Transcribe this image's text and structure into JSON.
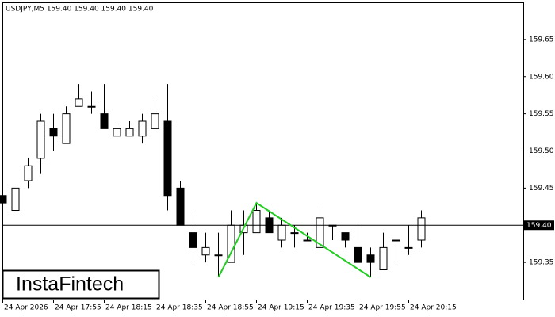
{
  "chart_data": {
    "type": "candlestick",
    "title": "USDJPY,M5  159.40 159.40 159.40 159.40",
    "brand": "InstaFintech",
    "categories": [
      "24 Apr 2026",
      null,
      null,
      null,
      "24 Apr 17:55",
      null,
      null,
      null,
      "24 Apr 18:15",
      null,
      null,
      null,
      "24 Apr 18:35",
      null,
      null,
      null,
      "24 Apr 18:55",
      null,
      null,
      null,
      "24 Apr 19:15",
      null,
      null,
      null,
      "24 Apr 19:35",
      null,
      null,
      null,
      "24 Apr 19:55",
      null,
      null,
      null,
      "24 Apr 20:15",
      null
    ],
    "open": [
      159.44,
      159.42,
      159.46,
      159.49,
      159.53,
      159.51,
      159.56,
      159.56,
      159.55,
      159.52,
      159.52,
      159.52,
      159.53,
      159.54,
      159.45,
      159.39,
      159.36,
      159.36,
      159.35,
      159.39,
      159.39,
      159.41,
      159.38,
      159.39,
      159.38,
      159.37,
      159.4,
      159.39,
      159.37,
      159.36,
      159.34,
      159.38,
      159.37,
      159.38
    ],
    "high": [
      159.45,
      159.45,
      159.49,
      159.55,
      159.55,
      159.56,
      159.59,
      159.58,
      159.59,
      159.54,
      159.54,
      159.55,
      159.57,
      159.59,
      159.46,
      159.42,
      159.39,
      159.39,
      159.42,
      159.42,
      159.43,
      159.42,
      159.41,
      159.4,
      159.39,
      159.43,
      159.4,
      159.39,
      159.4,
      159.37,
      159.39,
      159.38,
      159.4,
      159.42
    ],
    "low": [
      159.42,
      159.42,
      159.45,
      159.47,
      159.5,
      159.51,
      159.56,
      159.55,
      159.53,
      159.52,
      159.52,
      159.51,
      159.53,
      159.42,
      159.4,
      159.35,
      159.35,
      159.33,
      159.35,
      159.36,
      159.39,
      159.39,
      159.37,
      159.37,
      159.38,
      159.37,
      159.38,
      159.37,
      159.35,
      159.33,
      159.34,
      159.35,
      159.36,
      159.37
    ],
    "close": [
      159.43,
      159.45,
      159.48,
      159.54,
      159.52,
      159.55,
      159.57,
      159.56,
      159.53,
      159.53,
      159.53,
      159.54,
      159.55,
      159.44,
      159.4,
      159.37,
      159.37,
      159.36,
      159.4,
      159.4,
      159.42,
      159.39,
      159.4,
      159.39,
      159.38,
      159.41,
      159.4,
      159.38,
      159.35,
      159.35,
      159.37,
      159.38,
      159.37,
      159.41
    ],
    "up_color": "#ffffff",
    "down_color": "#000000",
    "pattern": {
      "x": [
        17,
        20,
        29
      ],
      "values": [
        159.33,
        159.43,
        159.33
      ],
      "color": "#22cc22"
    },
    "last_price": {
      "value": 159.4,
      "label": "159.40"
    },
    "ylim": [
      159.3,
      159.7
    ],
    "yticks": [
      159.35,
      {
        "value": 159.4,
        "label": "159.40"
      },
      159.45,
      {
        "value": 159.5,
        "label": "159.50"
      },
      159.55,
      {
        "value": 159.6,
        "label": "159.60"
      },
      159.65
    ]
  }
}
